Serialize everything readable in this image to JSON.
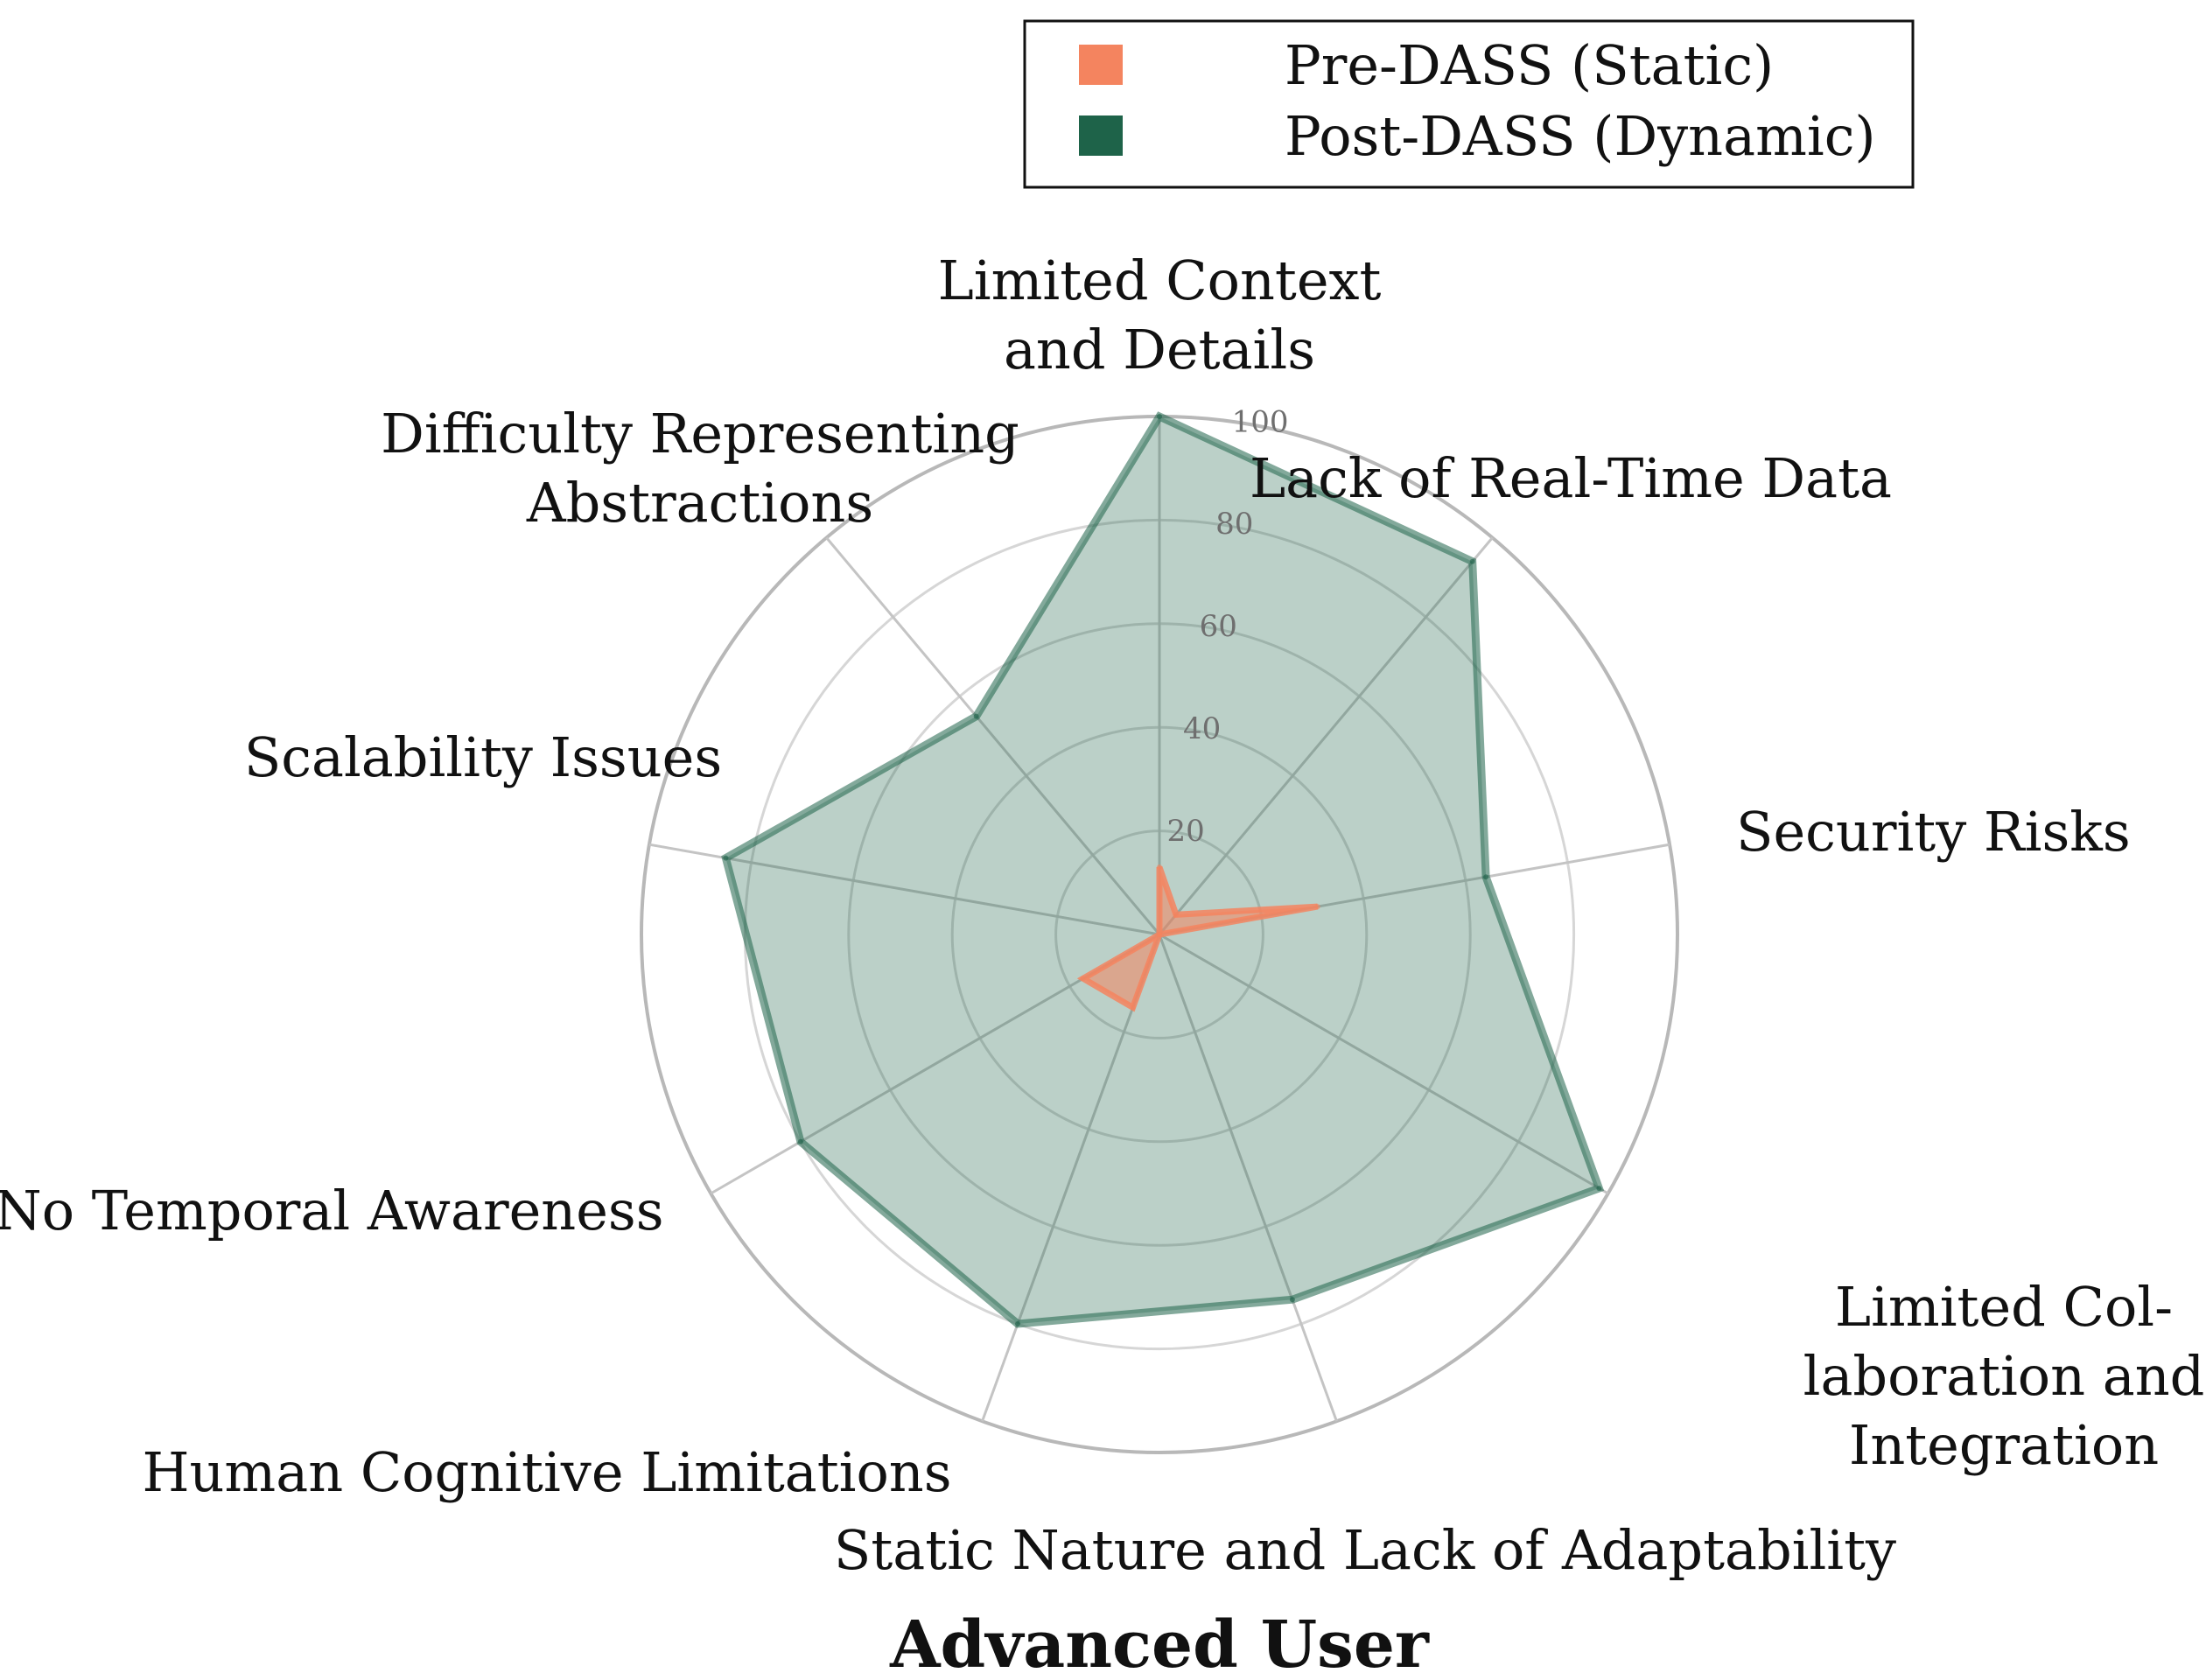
{
  "chart_data": {
    "type": "radar",
    "title": "Advanced User",
    "categories": [
      "Limited Context and Details",
      "Lack of Real-Time Data",
      "Security Risks",
      "Limited Collaboration and Integration",
      "Static Nature and Lack of Adaptability",
      "Human Cognitive Limitations",
      "No Temporal Awareness",
      "Scalability Issues",
      "Difficulty Representing Abstractions"
    ],
    "category_label_lines": [
      [
        "Limited Context",
        "and Details"
      ],
      [
        "Lack of Real-Time Data"
      ],
      [
        "Security Risks"
      ],
      [
        "Limited Col-",
        "laboration and",
        "Integration"
      ],
      [
        "Static Nature and Lack of Adaptability"
      ],
      [
        "Human Cognitive Limitations"
      ],
      [
        "No Temporal Awareness"
      ],
      [
        "Scalability Issues"
      ],
      [
        "Difficulty Representing",
        "Abstractions"
      ]
    ],
    "rlim": [
      0,
      100
    ],
    "rticks": [
      20,
      40,
      60,
      80,
      100
    ],
    "rtick_labels": [
      "20",
      "40",
      "60",
      "80",
      "100"
    ],
    "series": [
      {
        "name": "Pre-DASS (Static)",
        "color": "#F4845F",
        "values": [
          13,
          5,
          31,
          0,
          0,
          15,
          17,
          0,
          0
        ]
      },
      {
        "name": "Post-DASS (Dynamic)",
        "color": "#1E6349",
        "values": [
          100,
          94,
          64,
          98,
          75,
          80,
          80,
          85,
          55
        ]
      }
    ],
    "legend_position": "top-right"
  }
}
